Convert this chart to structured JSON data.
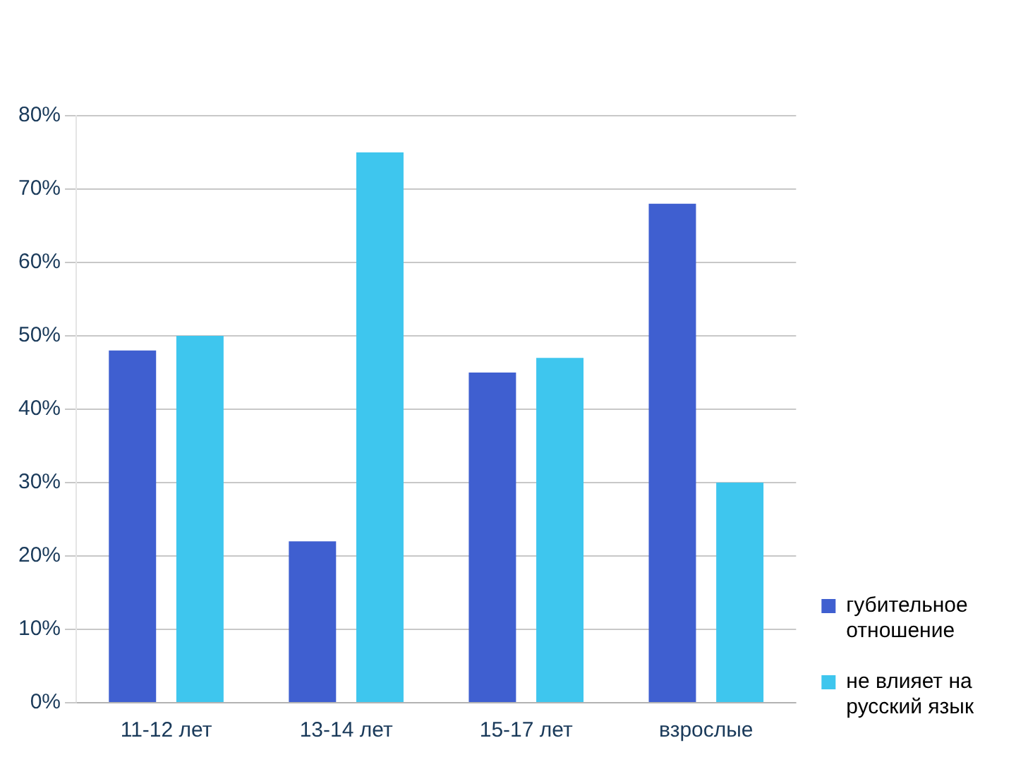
{
  "chart_data": {
    "type": "bar",
    "categories": [
      "11-12 лет",
      "13-14 лет",
      "15-17 лет",
      "взрослые"
    ],
    "series": [
      {
        "name": "губительное отношение",
        "color": "#3f5fd0",
        "values": [
          48,
          22,
          45,
          68
        ]
      },
      {
        "name": "не влияет на русский язык",
        "color": "#3ec6ee",
        "values": [
          50,
          75,
          47,
          30
        ]
      }
    ],
    "ylim": [
      0,
      80
    ],
    "yticks": [
      {
        "value": 0,
        "label": "0%"
      },
      {
        "value": 10,
        "label": "10%"
      },
      {
        "value": 20,
        "label": "20%"
      },
      {
        "value": 30,
        "label": "30%"
      },
      {
        "value": 40,
        "label": "40%"
      },
      {
        "value": 50,
        "label": "50%"
      },
      {
        "value": 60,
        "label": "60%"
      },
      {
        "value": 70,
        "label": "70%"
      },
      {
        "value": 80,
        "label": "80%"
      }
    ],
    "grid": "y",
    "legend": "bottom right"
  }
}
